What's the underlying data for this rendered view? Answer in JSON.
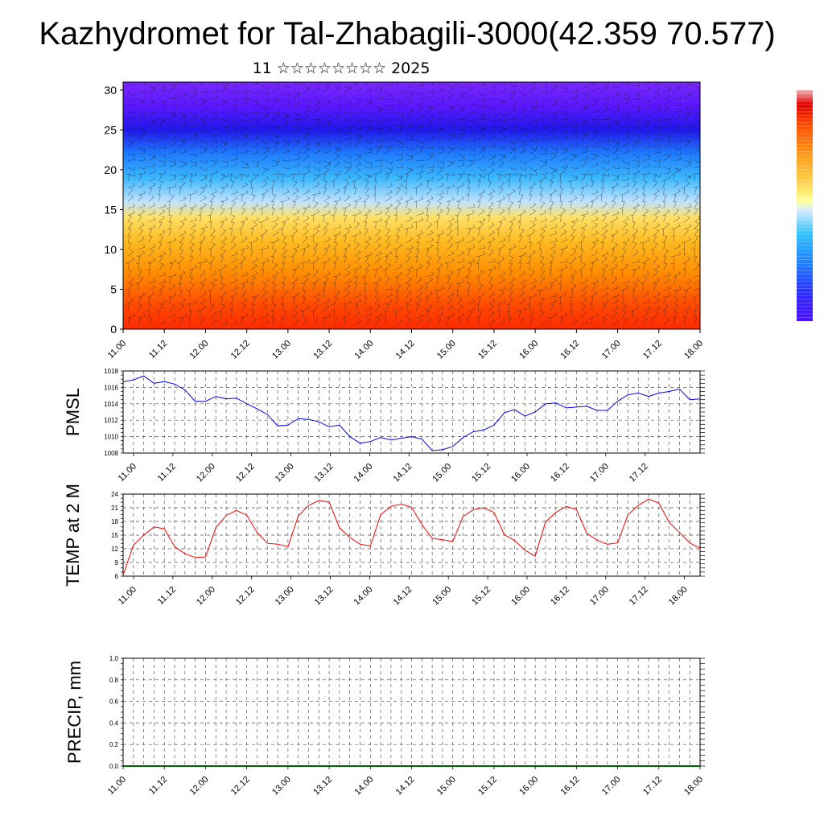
{
  "header": {
    "title": "Kazhydromet for Tal-Zhabagili-3000(42.359 70.577)",
    "subtitle": "11 ☆☆☆☆☆☆☆☆ 2025"
  },
  "chart_data": [
    {
      "type": "heatmap",
      "name": "cross-section",
      "x_ticks": [
        "11.00",
        "11.12",
        "12.00",
        "12.12",
        "13.00",
        "13.12",
        "14.00",
        "14.12",
        "15.00",
        "15.12",
        "16.00",
        "16.12",
        "17.00",
        "17.12",
        "18.00"
      ],
      "y_ticks": [
        "0",
        "5",
        "10",
        "15",
        "20",
        "25",
        "30"
      ],
      "ylim": [
        0,
        31
      ],
      "grid": false,
      "legend": "colorbar right, unlabeled",
      "colors": {
        "0": "#ff2a00",
        "3": "#ff4a00",
        "7": "#ff8c00",
        "11": "#ffbb22",
        "14": "#ffe066",
        "16": "#c0e2ff",
        "19": "#3ab7ff",
        "22": "#1f7bff",
        "25": "#2018e8",
        "28": "#5a18ff",
        "31": "#7a28ff"
      }
    },
    {
      "type": "line",
      "name": "pmsl",
      "ylabel": "PMSL",
      "ylim": [
        1008,
        1018
      ],
      "y_ticks": [
        "1018",
        "1016",
        "1014",
        "1012",
        "1010",
        "1008"
      ],
      "x_ticks": [
        "11.00",
        "11.12",
        "12.00",
        "12.12",
        "13.00",
        "13.12",
        "14.00",
        "14.12",
        "15.00",
        "15.12",
        "16.00",
        "16.12",
        "17.00",
        "17.12",
        "18.00"
      ],
      "color": "#0000ff",
      "grid": true,
      "series": [
        {
          "x": [
            0,
            3,
            6,
            9,
            12,
            15,
            18,
            21,
            24,
            27,
            30,
            33,
            36,
            39,
            42,
            45,
            48,
            51,
            54,
            57,
            60,
            63,
            66,
            69,
            72,
            75,
            78,
            81,
            84,
            87,
            90,
            93,
            96,
            99,
            102,
            105,
            108,
            111,
            114,
            117,
            120,
            123,
            126,
            129,
            132,
            135,
            138,
            141,
            144,
            147,
            150,
            153,
            156,
            159,
            162,
            165,
            168
          ],
          "values": [
            1016.7,
            1016.9,
            1017.4,
            1016.5,
            1016.7,
            1016.4,
            1015.7,
            1014.3,
            1014.3,
            1014.9,
            1014.6,
            1014.7,
            1014.0,
            1013.4,
            1012.7,
            1011.3,
            1011.4,
            1012.2,
            1012.1,
            1011.8,
            1011.2,
            1011.4,
            1010.0,
            1009.2,
            1009.4,
            1009.9,
            1009.6,
            1009.8,
            1010.0,
            1009.7,
            1008.3,
            1008.4,
            1008.8,
            1009.9,
            1010.6,
            1010.8,
            1011.4,
            1012.9,
            1013.3,
            1012.5,
            1013.0,
            1014.0,
            1014.1,
            1013.5,
            1013.6,
            1013.7,
            1013.2,
            1013.2,
            1014.3,
            1015.1,
            1015.3,
            1014.9,
            1015.3,
            1015.5,
            1015.8,
            1014.5,
            1014.6
          ]
        }
      ]
    },
    {
      "type": "line",
      "name": "temp",
      "ylabel": "TEMP at 2 M",
      "ylim": [
        6,
        24
      ],
      "y_ticks": [
        "24",
        "21",
        "18",
        "15",
        "12",
        "9",
        "6"
      ],
      "x_ticks": [
        "11.00",
        "11.12",
        "12.00",
        "12.12",
        "13.00",
        "13.12",
        "14.00",
        "14.12",
        "15.00",
        "15.12",
        "16.00",
        "16.12",
        "17.00",
        "17.12",
        "18.00"
      ],
      "color": "#ff0000",
      "grid": true,
      "series": [
        {
          "x": [
            0,
            3,
            6,
            9,
            12,
            15,
            18,
            21,
            24,
            27,
            30,
            33,
            36,
            39,
            42,
            45,
            48,
            51,
            54,
            57,
            60,
            63,
            66,
            69,
            72,
            75,
            78,
            81,
            84,
            87,
            90,
            93,
            96,
            99,
            102,
            105,
            108,
            111,
            114,
            117,
            120,
            123,
            126,
            129,
            132,
            135,
            138,
            141,
            144,
            147,
            150,
            153,
            156,
            159,
            162,
            165,
            168
          ],
          "values": [
            6.2,
            12.8,
            15.0,
            16.8,
            16.4,
            12.5,
            10.9,
            10.1,
            10.2,
            16.6,
            19.3,
            20.4,
            19.4,
            15.6,
            13.2,
            13.0,
            12.5,
            19.2,
            21.5,
            22.6,
            22.2,
            16.6,
            14.5,
            13.0,
            12.6,
            19.5,
            21.3,
            21.8,
            21.1,
            17.3,
            14.3,
            14.0,
            13.6,
            19.1,
            20.6,
            21.0,
            20.0,
            15.1,
            13.8,
            11.7,
            10.4,
            17.9,
            20.0,
            21.3,
            20.6,
            15.4,
            13.9,
            13.0,
            13.3,
            19.5,
            21.5,
            22.9,
            22.0,
            17.8,
            15.6,
            13.3,
            12.1
          ]
        }
      ]
    },
    {
      "type": "line",
      "name": "precip",
      "ylabel": "PRECIP, mm",
      "ylim": [
        0,
        1.0
      ],
      "y_ticks": [
        "1.0",
        "0.8",
        "0.6",
        "0.4",
        "0.2",
        "0.0"
      ],
      "x_ticks": [
        "11.00",
        "11.12",
        "12.00",
        "12.12",
        "13.00",
        "13.12",
        "14.00",
        "14.12",
        "15.00",
        "15.12",
        "16.00",
        "16.12",
        "17.00",
        "17.12",
        "18.00"
      ],
      "color": "#006400",
      "grid": true,
      "series": [
        {
          "x": [
            0,
            168
          ],
          "values": [
            0,
            0
          ]
        }
      ]
    }
  ]
}
